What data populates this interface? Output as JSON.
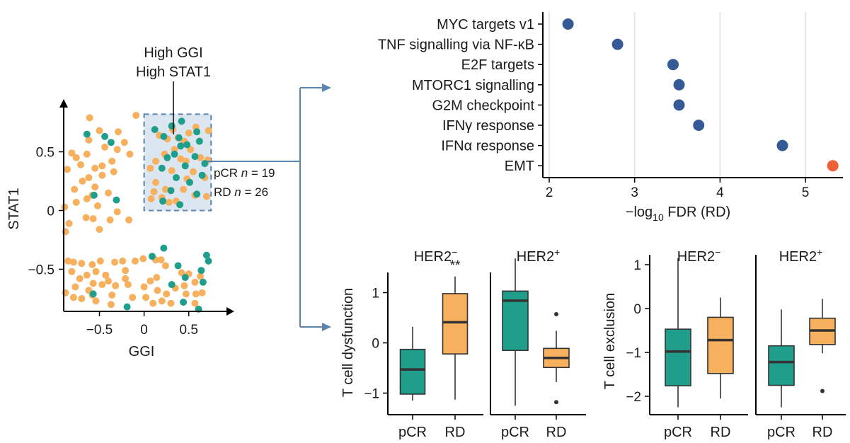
{
  "colors": {
    "pcr": "#1f9e8c",
    "rd": "#f7b05e",
    "dot_blue": "#365a95",
    "dot_red": "#ee6136",
    "highlight_fill": "#dce6f0",
    "highlight_stroke": "#5b85ad",
    "arrow": "#5b85ad"
  },
  "chart_data": [
    {
      "type": "scatter",
      "xlabel": "GGI",
      "ylabel": "STAT1",
      "xlim": [
        -0.85,
        0.95
      ],
      "ylim": [
        -0.85,
        0.95
      ],
      "xticks": [
        "-0.5",
        "0",
        "0.5"
      ],
      "xtick_values": [
        -0.5,
        0,
        0.5
      ],
      "yticks": [
        "0.5",
        "0",
        "-0.5"
      ],
      "ytick_values": [
        0.5,
        0,
        -0.5
      ],
      "callout": [
        "High GGI",
        "High STAT1"
      ],
      "highlight_region": {
        "x": [
          0,
          0.75
        ],
        "y": [
          0,
          0.82
        ]
      },
      "counts": [
        {
          "prefix": "pCR ",
          "var": "n",
          "value": " = 19"
        },
        {
          "prefix": "RD ",
          "var": "n",
          "value": " = 26"
        }
      ],
      "series": [
        {
          "group": "RD",
          "points": [
            [
              -0.61,
              0.79
            ],
            [
              -0.5,
              0.68
            ],
            [
              -0.29,
              0.67
            ],
            [
              -0.09,
              0.81
            ],
            [
              -0.81,
              0.49
            ],
            [
              -0.64,
              0.48
            ],
            [
              -0.76,
              0.45
            ],
            [
              -0.71,
              0.39
            ],
            [
              -0.44,
              0.54
            ],
            [
              -0.3,
              0.52
            ],
            [
              -0.22,
              0.58
            ],
            [
              -0.16,
              0.48
            ],
            [
              -0.62,
              0.6
            ],
            [
              -0.36,
              0.42
            ],
            [
              -0.47,
              0.38
            ],
            [
              -0.55,
              0.36
            ],
            [
              -0.69,
              0.25
            ],
            [
              -0.86,
              0.35
            ],
            [
              -0.62,
              0.28
            ],
            [
              -0.47,
              0.3
            ],
            [
              -0.78,
              0.18
            ],
            [
              -0.55,
              0.2
            ],
            [
              -0.34,
              0.33
            ],
            [
              -0.4,
              0.15
            ],
            [
              -0.58,
              0.13
            ],
            [
              -0.76,
              0.07
            ],
            [
              -0.64,
              0.1
            ],
            [
              -0.89,
              0.03
            ],
            [
              -0.52,
              0.04
            ],
            [
              -0.65,
              -0.06
            ],
            [
              -0.57,
              -0.07
            ],
            [
              -0.84,
              -0.11
            ],
            [
              -0.3,
              -0.01
            ],
            [
              -0.38,
              -0.08
            ],
            [
              -0.17,
              -0.08
            ],
            [
              -0.88,
              -0.18
            ],
            [
              -0.5,
              -0.16
            ],
            [
              -0.85,
              -0.43
            ],
            [
              -0.79,
              -0.44
            ],
            [
              -0.7,
              -0.45
            ],
            [
              -0.58,
              -0.46
            ],
            [
              -0.49,
              -0.43
            ],
            [
              -0.33,
              -0.44
            ],
            [
              -0.24,
              -0.43
            ],
            [
              -0.1,
              -0.43
            ],
            [
              -0.01,
              -0.41
            ],
            [
              0.13,
              -0.42
            ],
            [
              0.19,
              -0.42
            ],
            [
              -0.81,
              -0.52
            ],
            [
              -0.64,
              -0.55
            ],
            [
              -0.54,
              -0.52
            ],
            [
              -0.72,
              -0.58
            ],
            [
              -0.4,
              -0.6
            ],
            [
              -0.57,
              -0.62
            ],
            [
              -0.77,
              -0.65
            ],
            [
              -0.62,
              -0.68
            ],
            [
              -0.47,
              -0.63
            ],
            [
              -0.32,
              -0.64
            ],
            [
              -0.21,
              -0.58
            ],
            [
              -0.88,
              -0.7
            ],
            [
              -0.79,
              -0.74
            ],
            [
              -0.7,
              -0.75
            ],
            [
              -0.58,
              -0.72
            ],
            [
              -0.54,
              -0.77
            ],
            [
              -0.36,
              -0.72
            ],
            [
              -0.18,
              -0.63
            ],
            [
              -0.13,
              -0.74
            ],
            [
              0.0,
              -0.65
            ],
            [
              0.07,
              -0.6
            ],
            [
              0.14,
              -0.57
            ],
            [
              0.24,
              -0.47
            ],
            [
              0.42,
              -0.53
            ],
            [
              0.5,
              -0.54
            ],
            [
              0.57,
              -0.61
            ],
            [
              0.63,
              -0.56
            ],
            [
              0.45,
              -0.64
            ],
            [
              0.35,
              -0.66
            ],
            [
              0.25,
              -0.71
            ],
            [
              0.2,
              -0.77
            ],
            [
              0.3,
              -0.79
            ],
            [
              0.47,
              -0.71
            ],
            [
              0.58,
              -0.71
            ],
            [
              0.57,
              -0.79
            ],
            [
              0.65,
              -0.7
            ],
            [
              -0.37,
              -0.8
            ],
            [
              0.15,
              -0.68
            ],
            [
              0.1,
              -0.79
            ],
            [
              0.02,
              -0.74
            ],
            [
              -0.21,
              -0.51
            ],
            [
              -0.43,
              -0.55
            ],
            [
              0.32,
              0.69
            ],
            [
              0.38,
              0.62
            ],
            [
              0.45,
              0.59
            ],
            [
              0.5,
              0.66
            ],
            [
              0.58,
              0.71
            ],
            [
              0.72,
              0.68
            ],
            [
              0.17,
              0.64
            ],
            [
              0.26,
              0.61
            ],
            [
              0.52,
              0.52
            ],
            [
              0.63,
              0.45
            ],
            [
              0.71,
              0.43
            ],
            [
              0.34,
              0.52
            ],
            [
              0.23,
              0.48
            ],
            [
              0.13,
              0.42
            ],
            [
              0.07,
              0.36
            ],
            [
              0.41,
              0.44
            ],
            [
              0.55,
              0.33
            ],
            [
              0.68,
              0.28
            ],
            [
              0.48,
              0.27
            ],
            [
              0.31,
              0.34
            ],
            [
              0.24,
              0.18
            ],
            [
              0.13,
              0.24
            ],
            [
              0.44,
              0.18
            ],
            [
              0.11,
              0.16
            ],
            [
              0.2,
              0.11
            ],
            [
              0.36,
              0.08
            ],
            [
              0.57,
              0.13
            ],
            [
              0.7,
              0.12
            ],
            [
              0.28,
              0.07
            ],
            [
              0.08,
              0.1
            ],
            [
              0.62,
              0.59
            ],
            [
              0.47,
              0.42
            ]
          ]
        },
        {
          "group": "pCR",
          "points": [
            [
              -0.64,
              0.65
            ],
            [
              -0.44,
              0.63
            ],
            [
              -0.37,
              0.58
            ],
            [
              -0.31,
              0.09
            ],
            [
              -0.56,
              0.13
            ],
            [
              -0.57,
              -0.71
            ],
            [
              -0.19,
              -0.82
            ],
            [
              0.22,
              -0.32
            ],
            [
              0.38,
              -0.47
            ],
            [
              0.7,
              -0.38
            ],
            [
              0.64,
              -0.51
            ],
            [
              0.46,
              -0.57
            ],
            [
              0.66,
              -0.61
            ],
            [
              0.31,
              -0.63
            ],
            [
              0.44,
              -0.78
            ],
            [
              0.61,
              -0.84
            ],
            [
              0.09,
              -0.39
            ],
            [
              0.72,
              -0.43
            ],
            [
              0.42,
              0.76
            ],
            [
              0.31,
              0.72
            ],
            [
              0.12,
              0.69
            ],
            [
              0.59,
              0.67
            ],
            [
              0.22,
              0.63
            ],
            [
              0.39,
              0.62
            ],
            [
              0.41,
              0.55
            ],
            [
              0.62,
              0.59
            ],
            [
              0.34,
              0.48
            ],
            [
              0.26,
              0.45
            ],
            [
              0.57,
              0.46
            ],
            [
              0.46,
              0.38
            ],
            [
              0.68,
              0.4
            ],
            [
              0.2,
              0.36
            ],
            [
              0.36,
              0.28
            ],
            [
              0.51,
              0.24
            ],
            [
              0.3,
              0.17
            ],
            [
              0.59,
              0.14
            ],
            [
              0.21,
              0.08
            ],
            [
              0.4,
              0.05
            ],
            [
              0.65,
              0.3
            ],
            [
              0.48,
              0.56
            ]
          ]
        }
      ]
    },
    {
      "type": "scatter",
      "xlabel_parts": [
        "−log",
        "10",
        " FDR (RD)"
      ],
      "xlim": [
        1.8,
        5.45
      ],
      "xticks": [
        2,
        3,
        4,
        5
      ],
      "categories": [
        "MYC targets v1",
        "TNF signalling via NF-κB",
        "E2F targets",
        "MTORC1 signalling",
        "G2M checkpoint",
        "IFNγ response",
        "IFNα response",
        "EMT"
      ],
      "values": [
        2.22,
        2.8,
        3.45,
        3.52,
        3.52,
        3.75,
        4.73,
        5.32
      ],
      "highlight_index": 7,
      "grid": "vertical"
    },
    {
      "type": "box",
      "ylabel": "T cell dysfunction",
      "ylim": [
        -1.45,
        1.65
      ],
      "yticks": [
        1,
        0,
        -1
      ],
      "panels": [
        {
          "title": "HER2",
          "sup": "−",
          "annotation": "**",
          "groups": [
            {
              "label": "pCR",
              "whisker_low": -1.15,
              "q1": -1.02,
              "median": -0.53,
              "q3": -0.13,
              "whisker_high": 0.32,
              "outliers": []
            },
            {
              "label": "RD",
              "whisker_low": -1.13,
              "q1": -0.22,
              "median": 0.41,
              "q3": 0.98,
              "whisker_high": 1.32,
              "outliers": []
            }
          ]
        },
        {
          "title": "HER2",
          "sup": "+",
          "annotation": "",
          "groups": [
            {
              "label": "pCR",
              "whisker_low": -1.25,
              "q1": -0.15,
              "median": 0.84,
              "q3": 1.03,
              "whisker_high": 1.68,
              "outliers": []
            },
            {
              "label": "RD",
              "whisker_low": -0.78,
              "q1": -0.49,
              "median": -0.3,
              "q3": -0.11,
              "whisker_high": 0.24,
              "outliers": [
                0.57,
                -1.18
              ]
            }
          ]
        }
      ]
    },
    {
      "type": "box",
      "ylabel": "T cell exclusion",
      "ylim": [
        -2.35,
        1.45
      ],
      "yticks": [
        1,
        0,
        -1,
        -2
      ],
      "panels": [
        {
          "title": "HER2",
          "sup": "−",
          "annotation": "",
          "groups": [
            {
              "label": "pCR",
              "whisker_low": -2.25,
              "q1": -1.76,
              "median": -0.98,
              "q3": -0.47,
              "whisker_high": 1.15,
              "outliers": []
            },
            {
              "label": "RD",
              "whisker_low": -2.05,
              "q1": -1.48,
              "median": -0.72,
              "q3": -0.2,
              "whisker_high": 0.25,
              "outliers": []
            }
          ]
        },
        {
          "title": "HER2",
          "sup": "+",
          "annotation": "",
          "groups": [
            {
              "label": "pCR",
              "whisker_low": -2.25,
              "q1": -1.75,
              "median": -1.22,
              "q3": -0.85,
              "whisker_high": -0.02,
              "outliers": []
            },
            {
              "label": "RD",
              "whisker_low": -1.02,
              "q1": -0.82,
              "median": -0.5,
              "q3": -0.22,
              "whisker_high": 0.22,
              "outliers": [
                -1.88
              ]
            }
          ]
        }
      ]
    }
  ]
}
